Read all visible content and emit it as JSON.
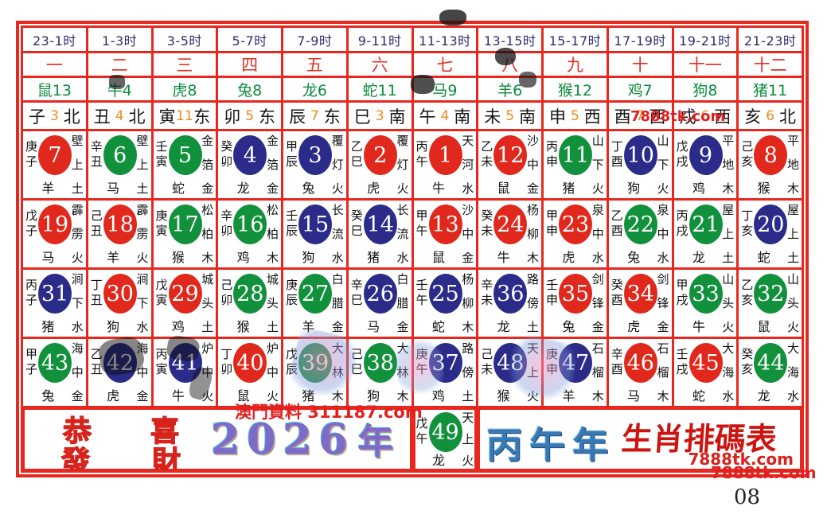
{
  "title": "丙午年生肖排码表",
  "header": {
    "times": [
      "23-1时",
      "1-3时",
      "3-5时",
      "5-7时",
      "7-9时",
      "9-11时",
      "11-13时",
      "13-15时",
      "15-17时",
      "17-19时",
      "19-21时",
      "21-23时"
    ],
    "numerals": [
      "一",
      "二",
      "三",
      "四",
      "五",
      "六",
      "七",
      "八",
      "九",
      "十",
      "十一",
      "十二"
    ],
    "zodiac_counts": [
      "鼠13",
      "牛4",
      "虎8",
      "兔8",
      "龙6",
      "蛇11",
      "马9",
      "羊6",
      "猴12",
      "鸡7",
      "狗8",
      "猪11"
    ],
    "branches": [
      {
        "branch": "子",
        "num": "3",
        "dir": "北"
      },
      {
        "branch": "丑",
        "num": "4",
        "dir": "北"
      },
      {
        "branch": "寅",
        "num": "11",
        "dir": "东"
      },
      {
        "branch": "卯",
        "num": "5",
        "dir": "东"
      },
      {
        "branch": "辰",
        "num": "7",
        "dir": "东"
      },
      {
        "branch": "巳",
        "num": "3",
        "dir": "南"
      },
      {
        "branch": "午",
        "num": "4",
        "dir": "南"
      },
      {
        "branch": "未",
        "num": "5",
        "dir": "南"
      },
      {
        "branch": "申",
        "num": "5",
        "dir": "西"
      },
      {
        "branch": "酉",
        "num": "7",
        "dir": "西"
      },
      {
        "branch": "戌",
        "num": "6",
        "dir": "西"
      },
      {
        "branch": "亥",
        "num": "6",
        "dir": "北"
      }
    ]
  },
  "balls": {
    "rows": [
      [
        {
          "n": 7,
          "c": "red",
          "g": "庚子",
          "e": "壁上土",
          "z": "羊"
        },
        {
          "n": 6,
          "c": "green",
          "g": "辛丑",
          "e": "壁上土",
          "z": "马"
        },
        {
          "n": 5,
          "c": "green",
          "g": "壬寅",
          "e": "金箔金",
          "z": "蛇"
        },
        {
          "n": 4,
          "c": "blue",
          "g": "癸卯",
          "e": "金箔金",
          "z": "龙"
        },
        {
          "n": 3,
          "c": "blue",
          "g": "甲辰",
          "e": "覆灯火",
          "z": "兔"
        },
        {
          "n": 2,
          "c": "red",
          "g": "乙巳",
          "e": "覆灯火",
          "z": "虎"
        },
        {
          "n": 1,
          "c": "red",
          "g": "丙午",
          "e": "天河水",
          "z": "牛"
        },
        {
          "n": 12,
          "c": "red",
          "g": "乙未",
          "e": "沙中金",
          "z": "鼠"
        },
        {
          "n": 11,
          "c": "green",
          "g": "丙申",
          "e": "山下火",
          "z": "猪"
        },
        {
          "n": 10,
          "c": "blue",
          "g": "丁酉",
          "e": "山下火",
          "z": "狗"
        },
        {
          "n": 9,
          "c": "blue",
          "g": "戊戌",
          "e": "平地木",
          "z": "鸡"
        },
        {
          "n": 8,
          "c": "red",
          "g": "己亥",
          "e": "平地木",
          "z": "猴"
        }
      ],
      [
        {
          "n": 19,
          "c": "red",
          "g": "戊子",
          "e": "霹雳火",
          "z": "马"
        },
        {
          "n": 18,
          "c": "red",
          "g": "己丑",
          "e": "霹雳火",
          "z": "羊"
        },
        {
          "n": 17,
          "c": "green",
          "g": "庚寅",
          "e": "松柏木",
          "z": "猴"
        },
        {
          "n": 16,
          "c": "green",
          "g": "辛卯",
          "e": "松柏木",
          "z": "鸡"
        },
        {
          "n": 15,
          "c": "blue",
          "g": "壬辰",
          "e": "长流水",
          "z": "狗"
        },
        {
          "n": 14,
          "c": "blue",
          "g": "癸巳",
          "e": "长流水",
          "z": "猪"
        },
        {
          "n": 13,
          "c": "red",
          "g": "甲午",
          "e": "沙中金",
          "z": "鼠"
        },
        {
          "n": 24,
          "c": "red",
          "g": "癸未",
          "e": "杨柳木",
          "z": "牛"
        },
        {
          "n": 23,
          "c": "red",
          "g": "甲申",
          "e": "泉中水",
          "z": "虎"
        },
        {
          "n": 22,
          "c": "green",
          "g": "乙酉",
          "e": "泉中水",
          "z": "兔"
        },
        {
          "n": 21,
          "c": "green",
          "g": "丙戌",
          "e": "屋上土",
          "z": "龙"
        },
        {
          "n": 20,
          "c": "blue",
          "g": "丁亥",
          "e": "屋上土",
          "z": "蛇"
        }
      ],
      [
        {
          "n": 31,
          "c": "blue",
          "g": "丙子",
          "e": "涧下水",
          "z": "猪"
        },
        {
          "n": 30,
          "c": "red",
          "g": "丁丑",
          "e": "涧下水",
          "z": "狗"
        },
        {
          "n": 29,
          "c": "red",
          "g": "戊寅",
          "e": "城头土",
          "z": "鸡"
        },
        {
          "n": 28,
          "c": "green",
          "g": "己卯",
          "e": "城头土",
          "z": "猴"
        },
        {
          "n": 27,
          "c": "green",
          "g": "庚辰",
          "e": "白腊金",
          "z": "羊"
        },
        {
          "n": 26,
          "c": "blue",
          "g": "辛巳",
          "e": "白腊金",
          "z": "马"
        },
        {
          "n": 25,
          "c": "blue",
          "g": "壬午",
          "e": "杨柳木",
          "z": "蛇"
        },
        {
          "n": 36,
          "c": "blue",
          "g": "辛未",
          "e": "路傍土",
          "z": "龙"
        },
        {
          "n": 35,
          "c": "red",
          "g": "壬申",
          "e": "剑锋金",
          "z": "兔"
        },
        {
          "n": 34,
          "c": "red",
          "g": "癸酉",
          "e": "剑锋金",
          "z": "虎"
        },
        {
          "n": 33,
          "c": "green",
          "g": "甲戌",
          "e": "山头火",
          "z": "牛"
        },
        {
          "n": 32,
          "c": "green",
          "g": "乙亥",
          "e": "山头火",
          "z": "鼠"
        }
      ],
      [
        {
          "n": 43,
          "c": "green",
          "g": "甲子",
          "e": "海中金",
          "z": "兔"
        },
        {
          "n": 42,
          "c": "blue",
          "g": "乙丑",
          "e": "海中金",
          "z": "虎"
        },
        {
          "n": 41,
          "c": "blue",
          "g": "丙寅",
          "e": "炉中火",
          "z": "牛"
        },
        {
          "n": 40,
          "c": "red",
          "g": "丁卯",
          "e": "炉中火",
          "z": "鼠"
        },
        {
          "n": 39,
          "c": "green",
          "g": "戊辰",
          "e": "大林木",
          "z": "猪"
        },
        {
          "n": 38,
          "c": "green",
          "g": "己巳",
          "e": "大林木",
          "z": "狗"
        },
        {
          "n": 37,
          "c": "blue",
          "g": "庚午",
          "e": "路傍土",
          "z": "鸡"
        },
        {
          "n": 48,
          "c": "blue",
          "g": "己未",
          "e": "天上火",
          "z": "猴"
        },
        {
          "n": 47,
          "c": "blue",
          "g": "庚申",
          "e": "石榴木",
          "z": "羊"
        },
        {
          "n": 46,
          "c": "red",
          "g": "辛酉",
          "e": "石榴木",
          "z": "马"
        },
        {
          "n": 45,
          "c": "red",
          "g": "壬戌",
          "e": "大海水",
          "z": "蛇"
        },
        {
          "n": 44,
          "c": "green",
          "g": "癸亥",
          "e": "大海水",
          "z": "龙"
        }
      ]
    ]
  },
  "footer": {
    "greeting": [
      "恭",
      "喜",
      "發",
      "財"
    ],
    "year": "2026",
    "year_suffix": "年",
    "ball49": {
      "n": 49,
      "c": "green",
      "g": "戊午",
      "e": "天上火",
      "z": "龙"
    },
    "era": "丙午年",
    "chart_name": "生肖排碼表",
    "site": "7888tk.com"
  },
  "watermarks": {
    "top_site": "7888tk.com",
    "macau": "澳門資料 311187.com",
    "bottom_site": "7888tk.com",
    "page_number": "08"
  },
  "colors": {
    "red": "#e0281c",
    "green": "#12913c",
    "blue": "#2b2b8a",
    "grid": "#e8281e"
  }
}
